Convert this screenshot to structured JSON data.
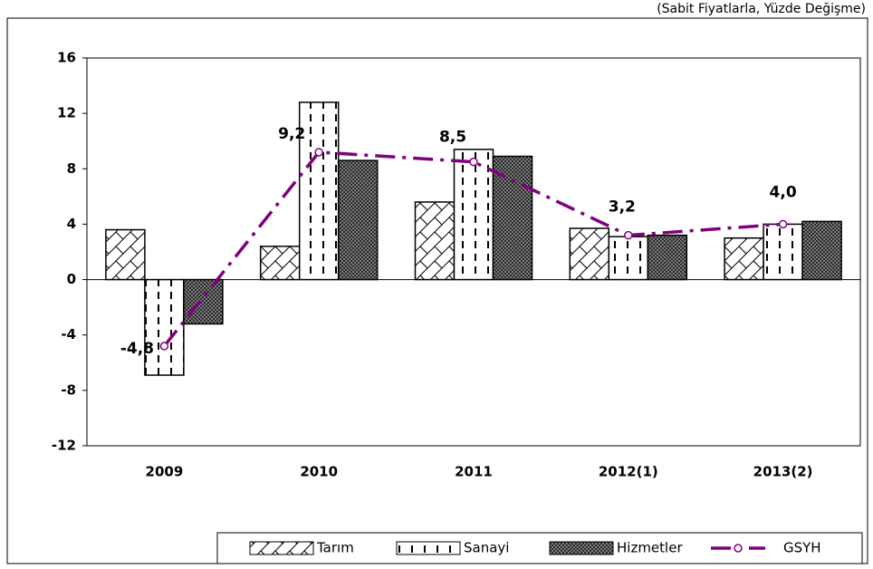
{
  "chart_data": {
    "type": "bar",
    "subtitle": "(Sabit Fiyatlarla, Yüzde Değişme)",
    "categories": [
      "2009",
      "2010",
      "2011",
      "2012(1)",
      "2013(2)"
    ],
    "series": [
      {
        "name": "Tarım",
        "color": "#000000",
        "values": [
          3.6,
          2.4,
          5.6,
          3.7,
          3.0
        ]
      },
      {
        "name": "Sanayi",
        "color": "#000000",
        "values": [
          -6.9,
          12.8,
          9.4,
          3.1,
          4.0
        ]
      },
      {
        "name": "Hizmetler",
        "color": "#000000",
        "values": [
          -3.2,
          8.6,
          8.9,
          3.2,
          4.2
        ]
      },
      {
        "name": "GSYH",
        "type": "line",
        "color": "#800080",
        "values": [
          -4.8,
          9.2,
          8.5,
          3.2,
          4.0
        ],
        "value_labels": [
          "-4,8",
          "9,2",
          "8,5",
          "3,2",
          "4,0"
        ]
      }
    ],
    "ylim": [
      -12,
      16
    ],
    "yticks": [
      -12,
      -8,
      -4,
      0,
      4,
      8,
      12,
      16
    ]
  }
}
